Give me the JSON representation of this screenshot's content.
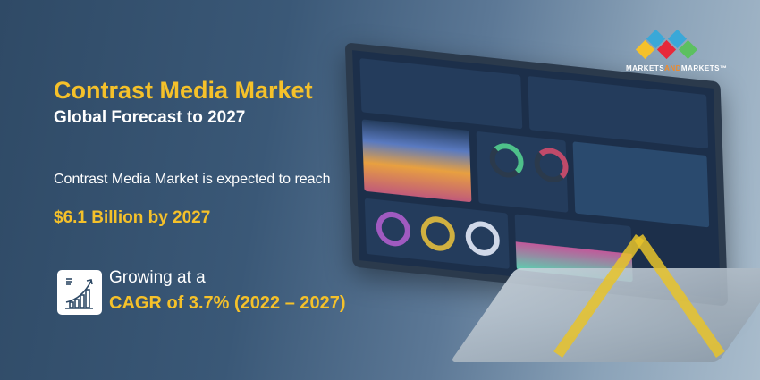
{
  "title": "Contrast Media Market",
  "subtitle": "Global Forecast to 2027",
  "expectation": "Contrast Media Market is expected to reach",
  "market_value": "$6.1 Billion by 2027",
  "growth_label": "Growing at a",
  "cagr": "CAGR of  3.7% (2022 – 2027)",
  "logo": {
    "part1": "MARKETS",
    "part2": "AND",
    "part3": "MARKETS",
    "tm": "™"
  },
  "icons": {
    "growth": "growth-chart-icon"
  },
  "colors": {
    "accent": "#f5c12a",
    "background": "#3a5877",
    "logo_and": "#f08a2a"
  }
}
